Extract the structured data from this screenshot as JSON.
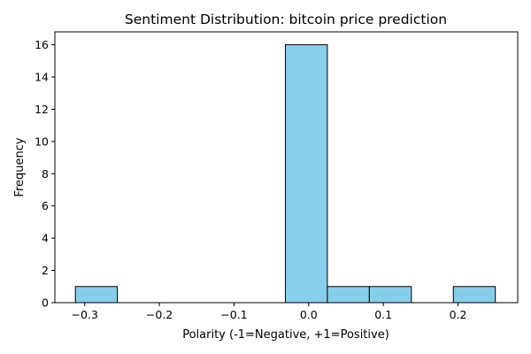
{
  "chart_data": {
    "type": "bar",
    "title": "Sentiment Distribution: bitcoin price prediction",
    "xlabel": "Polarity (-1=Negative, +1=Positive)",
    "ylabel": "Frequency",
    "xlim": [
      -0.34,
      0.28
    ],
    "ylim": [
      0,
      16.8
    ],
    "x_ticks": [
      -0.3,
      -0.2,
      -0.1,
      0.0,
      0.1,
      0.2
    ],
    "x_tick_labels": [
      "−0.3",
      "−0.2",
      "−0.1",
      "0.0",
      "0.1",
      "0.2"
    ],
    "y_ticks": [
      0,
      2,
      4,
      6,
      8,
      10,
      12,
      14,
      16
    ],
    "y_tick_labels": [
      "0",
      "2",
      "4",
      "6",
      "8",
      "10",
      "12",
      "14",
      "16"
    ],
    "bins": [
      {
        "x0": -0.3125,
        "x1": -0.25625,
        "count": 1
      },
      {
        "x0": -0.25625,
        "x1": -0.2,
        "count": 0
      },
      {
        "x0": -0.2,
        "x1": -0.14375,
        "count": 0
      },
      {
        "x0": -0.14375,
        "x1": -0.0875,
        "count": 0
      },
      {
        "x0": -0.0875,
        "x1": -0.03125,
        "count": 0
      },
      {
        "x0": -0.03125,
        "x1": 0.025,
        "count": 16
      },
      {
        "x0": 0.025,
        "x1": 0.08125,
        "count": 1
      },
      {
        "x0": 0.08125,
        "x1": 0.1375,
        "count": 1
      },
      {
        "x0": 0.1375,
        "x1": 0.19375,
        "count": 0
      },
      {
        "x0": 0.19375,
        "x1": 0.25,
        "count": 1
      }
    ],
    "bar_color": "#87CEEB",
    "edge_color": "#000000",
    "grid": false,
    "legend": "none"
  }
}
